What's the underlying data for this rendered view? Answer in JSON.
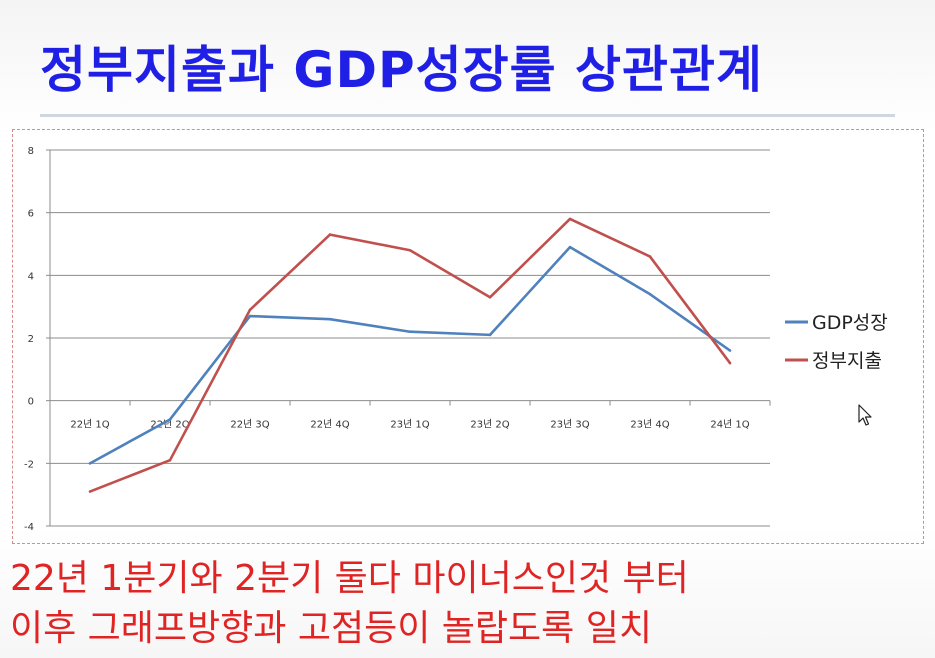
{
  "slide": {
    "title": "정부지출과 GDP성장률 상관관계",
    "caption_line1": "22년 1분기와 2분기 둘다 마이너스인것 부터",
    "caption_line2": "이후 그래프방향과 고점등이 놀랍도록 일치"
  },
  "chart_data": {
    "type": "line",
    "title": "",
    "xlabel": "",
    "ylabel": "",
    "categories": [
      "22년 1Q",
      "22년 2Q",
      "22년 3Q",
      "22년 4Q",
      "23년 1Q",
      "23년 2Q",
      "23년 3Q",
      "23년 4Q",
      "24년 1Q"
    ],
    "ylim": [
      -4,
      8
    ],
    "yticks": [
      -4,
      -2,
      0,
      2,
      4,
      6,
      8
    ],
    "grid": true,
    "legend_position": "right",
    "series": [
      {
        "name": "GDP성장",
        "color": "#4f81bd",
        "values": [
          -2.0,
          -0.6,
          2.7,
          2.6,
          2.2,
          2.1,
          4.9,
          3.4,
          1.6
        ]
      },
      {
        "name": "정부지출",
        "color": "#c0504d",
        "values": [
          -2.9,
          -1.9,
          2.9,
          5.3,
          4.8,
          3.3,
          5.8,
          4.6,
          1.2
        ]
      }
    ]
  },
  "icons": {
    "cursor": "mouse-pointer-icon"
  }
}
